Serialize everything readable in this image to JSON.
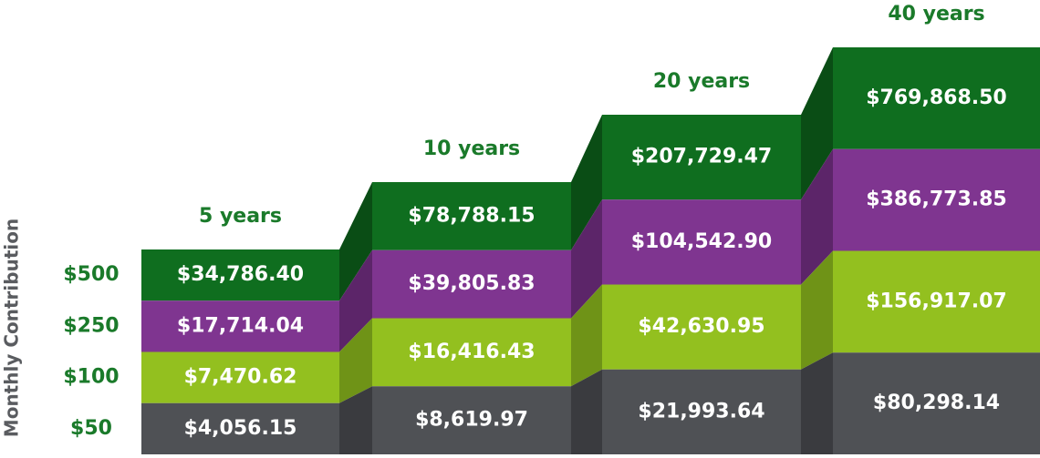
{
  "axis_label": "Monthly Contribution",
  "rows": [
    "$500",
    "$250",
    "$100",
    "$50"
  ],
  "columns": [
    {
      "label": "5 years",
      "values": [
        "$34,786.40",
        "$17,714.04",
        "$7,470.62",
        "$4,056.15"
      ]
    },
    {
      "label": "10 years",
      "values": [
        "$78,788.15",
        "$39,805.83",
        "$16,416.43",
        "$8,619.97"
      ]
    },
    {
      "label": "20 years",
      "values": [
        "$207,729.47",
        "$104,542.90",
        "$42,630.95",
        "$21,993.64"
      ]
    },
    {
      "label": "40 years",
      "values": [
        "$769,868.50",
        "$386,773.85",
        "$156,917.07",
        "$80,298.14"
      ]
    }
  ]
}
